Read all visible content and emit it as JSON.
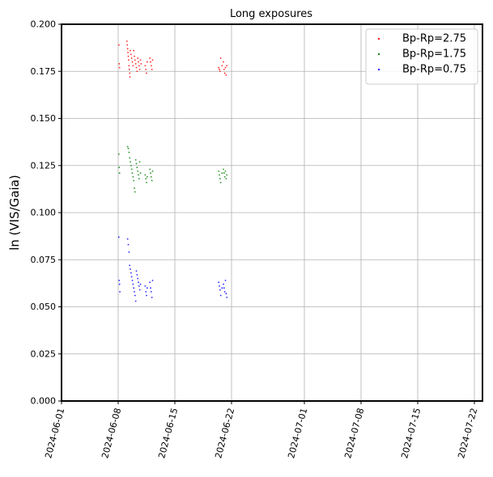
{
  "chart_data": {
    "type": "scatter",
    "title": "Long exposures",
    "xlabel": "",
    "ylabel": "ln (VIS/Gaia)",
    "x_axis_type": "date",
    "xlim": [
      "2024-06-01",
      "2024-07-23"
    ],
    "ylim": [
      0.0,
      0.2
    ],
    "x_ticks": [
      "2024-06-01",
      "2024-06-08",
      "2024-06-15",
      "2024-06-22",
      "2024-07-01",
      "2024-07-08",
      "2024-07-15",
      "2024-07-22"
    ],
    "y_ticks": [
      "0.000",
      "0.025",
      "0.050",
      "0.075",
      "0.100",
      "0.125",
      "0.150",
      "0.175",
      "0.200"
    ],
    "grid": true,
    "legend_position": "top-right",
    "series": [
      {
        "name": "Bp-Rp=2.75",
        "color": "#ff0000",
        "points": [
          [
            "2024-06-08 02:00",
            0.189
          ],
          [
            "2024-06-08 03:00",
            0.179
          ],
          [
            "2024-06-08 04:00",
            0.177
          ],
          [
            "2024-06-09 02:00",
            0.191
          ],
          [
            "2024-06-09 03:00",
            0.189
          ],
          [
            "2024-06-09 04:00",
            0.187
          ],
          [
            "2024-06-09 05:00",
            0.185
          ],
          [
            "2024-06-09 06:00",
            0.183
          ],
          [
            "2024-06-09 07:00",
            0.181
          ],
          [
            "2024-06-09 08:00",
            0.178
          ],
          [
            "2024-06-09 09:00",
            0.176
          ],
          [
            "2024-06-09 10:00",
            0.174
          ],
          [
            "2024-06-09 11:00",
            0.172
          ],
          [
            "2024-06-09 12:00",
            0.186
          ],
          [
            "2024-06-09 14:00",
            0.184
          ],
          [
            "2024-06-09 16:00",
            0.182
          ],
          [
            "2024-06-09 18:00",
            0.18
          ],
          [
            "2024-06-09 20:00",
            0.178
          ],
          [
            "2024-06-09 22:00",
            0.186
          ],
          [
            "2024-06-10 00:00",
            0.183
          ],
          [
            "2024-06-10 02:00",
            0.181
          ],
          [
            "2024-06-10 04:00",
            0.179
          ],
          [
            "2024-06-10 06:00",
            0.177
          ],
          [
            "2024-06-10 08:00",
            0.175
          ],
          [
            "2024-06-10 10:00",
            0.182
          ],
          [
            "2024-06-10 12:00",
            0.18
          ],
          [
            "2024-06-10 14:00",
            0.178
          ],
          [
            "2024-06-10 16:00",
            0.176
          ],
          [
            "2024-06-10 18:00",
            0.181
          ],
          [
            "2024-06-10 20:00",
            0.179
          ],
          [
            "2024-06-11 08:00",
            0.178
          ],
          [
            "2024-06-11 10:00",
            0.176
          ],
          [
            "2024-06-11 12:00",
            0.174
          ],
          [
            "2024-06-11 14:00",
            0.18
          ],
          [
            "2024-06-11 22:00",
            0.182
          ],
          [
            "2024-06-12 00:00",
            0.18
          ],
          [
            "2024-06-12 02:00",
            0.178
          ],
          [
            "2024-06-12 04:00",
            0.176
          ],
          [
            "2024-06-12 06:00",
            0.181
          ],
          [
            "2024-06-20 10:00",
            0.177
          ],
          [
            "2024-06-20 12:00",
            0.176
          ],
          [
            "2024-06-20 14:00",
            0.175
          ],
          [
            "2024-06-20 16:00",
            0.182
          ],
          [
            "2024-06-20 20:00",
            0.178
          ],
          [
            "2024-06-21 00:00",
            0.18
          ],
          [
            "2024-06-21 02:00",
            0.176
          ],
          [
            "2024-06-21 04:00",
            0.174
          ],
          [
            "2024-06-21 06:00",
            0.177
          ],
          [
            "2024-06-21 08:00",
            0.173
          ],
          [
            "2024-06-21 10:00",
            0.178
          ]
        ]
      },
      {
        "name": "Bp-Rp=1.75",
        "color": "#008000",
        "points": [
          [
            "2024-06-08 02:00",
            0.131
          ],
          [
            "2024-06-08 03:00",
            0.124
          ],
          [
            "2024-06-08 04:00",
            0.121
          ],
          [
            "2024-06-09 04:00",
            0.135
          ],
          [
            "2024-06-09 06:00",
            0.134
          ],
          [
            "2024-06-09 08:00",
            0.132
          ],
          [
            "2024-06-09 10:00",
            0.129
          ],
          [
            "2024-06-09 12:00",
            0.127
          ],
          [
            "2024-06-09 14:00",
            0.125
          ],
          [
            "2024-06-09 16:00",
            0.123
          ],
          [
            "2024-06-09 18:00",
            0.121
          ],
          [
            "2024-06-09 20:00",
            0.119
          ],
          [
            "2024-06-09 22:00",
            0.117
          ],
          [
            "2024-06-10 00:00",
            0.113
          ],
          [
            "2024-06-10 02:00",
            0.111
          ],
          [
            "2024-06-10 04:00",
            0.128
          ],
          [
            "2024-06-10 06:00",
            0.126
          ],
          [
            "2024-06-10 08:00",
            0.124
          ],
          [
            "2024-06-10 10:00",
            0.122
          ],
          [
            "2024-06-10 12:00",
            0.12
          ],
          [
            "2024-06-10 14:00",
            0.118
          ],
          [
            "2024-06-10 16:00",
            0.127
          ],
          [
            "2024-06-10 18:00",
            0.121
          ],
          [
            "2024-06-11 08:00",
            0.12
          ],
          [
            "2024-06-11 10:00",
            0.118
          ],
          [
            "2024-06-11 12:00",
            0.116
          ],
          [
            "2024-06-11 14:00",
            0.119
          ],
          [
            "2024-06-11 22:00",
            0.123
          ],
          [
            "2024-06-12 00:00",
            0.121
          ],
          [
            "2024-06-12 02:00",
            0.119
          ],
          [
            "2024-06-12 04:00",
            0.117
          ],
          [
            "2024-06-12 06:00",
            0.122
          ],
          [
            "2024-06-20 10:00",
            0.122
          ],
          [
            "2024-06-20 12:00",
            0.12
          ],
          [
            "2024-06-20 14:00",
            0.118
          ],
          [
            "2024-06-20 16:00",
            0.116
          ],
          [
            "2024-06-20 20:00",
            0.121
          ],
          [
            "2024-06-21 00:00",
            0.123
          ],
          [
            "2024-06-21 02:00",
            0.121
          ],
          [
            "2024-06-21 04:00",
            0.119
          ],
          [
            "2024-06-21 06:00",
            0.122
          ],
          [
            "2024-06-21 08:00",
            0.118
          ],
          [
            "2024-06-21 10:00",
            0.12
          ]
        ]
      },
      {
        "name": "Bp-Rp=0.75",
        "color": "#0000ff",
        "points": [
          [
            "2024-06-08 02:00",
            0.087
          ],
          [
            "2024-06-08 03:00",
            0.064
          ],
          [
            "2024-06-08 04:00",
            0.062
          ],
          [
            "2024-06-08 05:00",
            0.058
          ],
          [
            "2024-06-09 04:00",
            0.086
          ],
          [
            "2024-06-09 06:00",
            0.083
          ],
          [
            "2024-06-09 08:00",
            0.079
          ],
          [
            "2024-06-09 10:00",
            0.072
          ],
          [
            "2024-06-09 12:00",
            0.07
          ],
          [
            "2024-06-09 14:00",
            0.068
          ],
          [
            "2024-06-09 16:00",
            0.066
          ],
          [
            "2024-06-09 18:00",
            0.064
          ],
          [
            "2024-06-09 20:00",
            0.062
          ],
          [
            "2024-06-09 22:00",
            0.06
          ],
          [
            "2024-06-10 00:00",
            0.058
          ],
          [
            "2024-06-10 02:00",
            0.056
          ],
          [
            "2024-06-10 04:00",
            0.053
          ],
          [
            "2024-06-10 06:00",
            0.069
          ],
          [
            "2024-06-10 08:00",
            0.067
          ],
          [
            "2024-06-10 10:00",
            0.065
          ],
          [
            "2024-06-10 12:00",
            0.063
          ],
          [
            "2024-06-10 14:00",
            0.061
          ],
          [
            "2024-06-10 16:00",
            0.059
          ],
          [
            "2024-06-10 18:00",
            0.062
          ],
          [
            "2024-06-11 08:00",
            0.061
          ],
          [
            "2024-06-11 10:00",
            0.058
          ],
          [
            "2024-06-11 12:00",
            0.056
          ],
          [
            "2024-06-11 14:00",
            0.06
          ],
          [
            "2024-06-11 22:00",
            0.063
          ],
          [
            "2024-06-12 00:00",
            0.06
          ],
          [
            "2024-06-12 02:00",
            0.058
          ],
          [
            "2024-06-12 04:00",
            0.055
          ],
          [
            "2024-06-12 06:00",
            0.064
          ],
          [
            "2024-06-20 10:00",
            0.063
          ],
          [
            "2024-06-20 12:00",
            0.061
          ],
          [
            "2024-06-20 14:00",
            0.059
          ],
          [
            "2024-06-20 16:00",
            0.056
          ],
          [
            "2024-06-20 20:00",
            0.06
          ],
          [
            "2024-06-21 00:00",
            0.062
          ],
          [
            "2024-06-21 02:00",
            0.06
          ],
          [
            "2024-06-21 04:00",
            0.058
          ],
          [
            "2024-06-21 06:00",
            0.064
          ],
          [
            "2024-06-21 08:00",
            0.057
          ],
          [
            "2024-06-21 10:00",
            0.055
          ]
        ]
      }
    ]
  }
}
